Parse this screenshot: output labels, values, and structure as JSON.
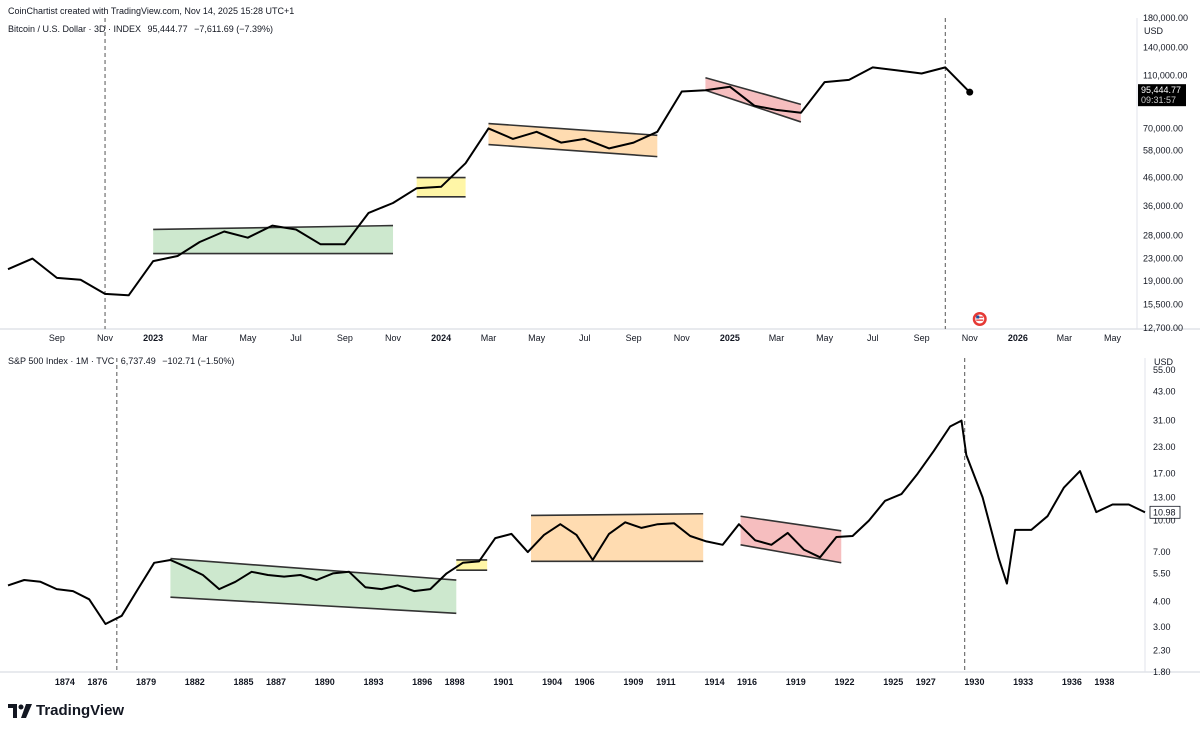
{
  "header": {
    "text": "CoinChartist created with TradingView.com, Nov 14, 2025 15:28 UTC+1"
  },
  "brand": {
    "name": "TradingView",
    "icon": "tradingview-logo-icon"
  },
  "colors": {
    "line": "#000000",
    "green": "#c8e6c9",
    "yellow": "#fff59d",
    "orange": "#ffd8a8",
    "red": "#f5b7b8",
    "axis_text": "#131722",
    "price_tag_bg": "#000000",
    "badge_red": "#e53935"
  },
  "chart_data": [
    {
      "type": "line",
      "legend": {
        "symbol": "Bitcoin / U.S. Dollar · 3D · INDEX",
        "price": "95,444.77",
        "change": "−7,611.69 (−7.39%)"
      },
      "currency": "USD",
      "scale": "log",
      "last_price": "95,444.77",
      "countdown": "09:31:57",
      "ylim": [
        12700,
        180000
      ],
      "y_ticks": [
        "180,000.00",
        "140,000.00",
        "110,000.00",
        "90,000.00",
        "70,000.00",
        "58,000.00",
        "46,000.00",
        "36,000.00",
        "28,000.00",
        "23,000.00",
        "19,000.00",
        "15,500.00",
        "12,700.00"
      ],
      "y_tick_values": [
        180000,
        140000,
        110000,
        90000,
        70000,
        58000,
        46000,
        36000,
        28000,
        23000,
        19000,
        15500,
        12700
      ],
      "x_ticks": [
        {
          "label": "Sep",
          "bold": false
        },
        {
          "label": "Nov",
          "bold": false
        },
        {
          "label": "2023",
          "bold": true
        },
        {
          "label": "Mar",
          "bold": false
        },
        {
          "label": "May",
          "bold": false
        },
        {
          "label": "Jul",
          "bold": false
        },
        {
          "label": "Sep",
          "bold": false
        },
        {
          "label": "Nov",
          "bold": false
        },
        {
          "label": "2024",
          "bold": true
        },
        {
          "label": "Mar",
          "bold": false
        },
        {
          "label": "May",
          "bold": false
        },
        {
          "label": "Jul",
          "bold": false
        },
        {
          "label": "Sep",
          "bold": false
        },
        {
          "label": "Nov",
          "bold": false
        },
        {
          "label": "2025",
          "bold": true
        },
        {
          "label": "Mar",
          "bold": false
        },
        {
          "label": "May",
          "bold": false
        },
        {
          "label": "Jul",
          "bold": false
        },
        {
          "label": "Sep",
          "bold": false
        },
        {
          "label": "Nov",
          "bold": false
        },
        {
          "label": "2026",
          "bold": true
        },
        {
          "label": "Mar",
          "bold": false
        },
        {
          "label": "May",
          "bold": false
        }
      ],
      "x_dates": [
        "2022-09",
        "2022-11",
        "2023-01",
        "2023-03",
        "2023-05",
        "2023-07",
        "2023-09",
        "2023-11",
        "2024-01",
        "2024-03",
        "2024-05",
        "2024-07",
        "2024-09",
        "2024-11",
        "2025-01",
        "2025-03",
        "2025-05",
        "2025-07",
        "2025-09",
        "2025-11",
        "2026-01",
        "2026-03",
        "2026-05"
      ],
      "x": [
        "2022-07",
        "2022-08",
        "2022-09",
        "2022-10",
        "2022-11",
        "2022-12",
        "2023-01",
        "2023-02",
        "2023-03",
        "2023-04",
        "2023-05",
        "2023-06",
        "2023-07",
        "2023-08",
        "2023-09",
        "2023-10",
        "2023-11",
        "2023-12",
        "2024-01",
        "2024-02",
        "2024-03",
        "2024-04",
        "2024-05",
        "2024-06",
        "2024-07",
        "2024-08",
        "2024-09",
        "2024-10",
        "2024-11",
        "2024-12",
        "2025-01",
        "2025-02",
        "2025-03",
        "2025-04",
        "2025-05",
        "2025-06",
        "2025-07",
        "2025-08",
        "2025-09",
        "2025-10",
        "2025-11"
      ],
      "values": [
        21000,
        23000,
        19500,
        19200,
        17000,
        16800,
        22500,
        23500,
        26500,
        29000,
        27500,
        30500,
        29500,
        26000,
        26000,
        34000,
        37000,
        42000,
        42500,
        52000,
        70000,
        64000,
        68000,
        62000,
        64000,
        59000,
        62000,
        68000,
        96000,
        97000,
        100000,
        85000,
        82000,
        80000,
        104000,
        106000,
        118000,
        115000,
        112000,
        118000,
        95444.77
      ],
      "channels": [
        {
          "color": "green",
          "from": "2023-01",
          "to": "2023-11",
          "top": [
            29500,
            30500
          ],
          "bottom": [
            24000,
            24000
          ]
        },
        {
          "color": "yellow",
          "from": "2023-12",
          "to": "2024-02",
          "top": [
            46000,
            46000
          ],
          "bottom": [
            39000,
            39000
          ]
        },
        {
          "color": "orange",
          "from": "2024-03",
          "to": "2024-10",
          "top": [
            73000,
            66000
          ],
          "bottom": [
            61000,
            55000
          ]
        },
        {
          "color": "red",
          "from": "2024-12",
          "to": "2025-04",
          "top": [
            108000,
            86000
          ],
          "bottom": [
            97000,
            74000
          ]
        }
      ],
      "markers": [
        "2022-11",
        "2025-10"
      ],
      "badge": {
        "icon": "us-flag-icon",
        "x": "2025-11"
      }
    },
    {
      "type": "line",
      "legend": {
        "symbol": "S&P 500 Index · 1M · TVC",
        "price": "6,737.49",
        "change": "−102.71 (−1.50%)"
      },
      "currency": "USD",
      "scale": "log",
      "last_price": "10.98",
      "ylim": [
        1.8,
        55
      ],
      "y_ticks": [
        "55.00",
        "43.00",
        "31.00",
        "23.00",
        "17.00",
        "13.00",
        "10.00",
        "7.00",
        "5.50",
        "4.00",
        "3.00",
        "2.30",
        "1.80"
      ],
      "y_tick_values": [
        55,
        43,
        31,
        23,
        17,
        13,
        10,
        7,
        5.5,
        4,
        3,
        2.3,
        1.8
      ],
      "x_ticks": [
        "1874",
        "1876",
        "1879",
        "1882",
        "1885",
        "1887",
        "1890",
        "1893",
        "1896",
        "1898",
        "1901",
        "1904",
        "1906",
        "1909",
        "1911",
        "1914",
        "1916",
        "1919",
        "1922",
        "1925",
        "1927",
        "1930",
        "1933",
        "1936",
        "1938"
      ],
      "x": [
        1871,
        1872,
        1873,
        1874,
        1875,
        1876,
        1877,
        1878,
        1879,
        1880,
        1881,
        1882,
        1883,
        1884,
        1885,
        1886,
        1887,
        1888,
        1889,
        1890,
        1891,
        1892,
        1893,
        1894,
        1895,
        1896,
        1897,
        1898,
        1899,
        1900,
        1901,
        1902,
        1903,
        1904,
        1905,
        1906,
        1907,
        1908,
        1909,
        1910,
        1911,
        1912,
        1913,
        1914,
        1915,
        1916,
        1917,
        1918,
        1919,
        1920,
        1921,
        1922,
        1923,
        1924,
        1925,
        1926,
        1927,
        1928,
        1929,
        1929.7,
        1930,
        1931,
        1932,
        1932.5,
        1933,
        1934,
        1935,
        1936,
        1937,
        1938,
        1939,
        1940,
        1941
      ],
      "values": [
        4.8,
        5.1,
        5.0,
        4.6,
        4.5,
        4.1,
        3.1,
        3.4,
        4.6,
        6.2,
        6.4,
        5.9,
        5.4,
        4.6,
        5.0,
        5.6,
        5.4,
        5.3,
        5.4,
        5.1,
        5.5,
        5.6,
        4.7,
        4.6,
        4.8,
        4.5,
        4.6,
        5.5,
        6.2,
        6.3,
        8.2,
        8.6,
        7.0,
        8.5,
        9.6,
        8.5,
        6.4,
        8.6,
        9.8,
        9.2,
        9.6,
        9.7,
        8.4,
        7.9,
        7.6,
        9.6,
        8.0,
        7.6,
        8.7,
        7.2,
        6.6,
        8.3,
        8.4,
        10.0,
        12.5,
        13.5,
        17.0,
        22.0,
        29.0,
        31.0,
        21.0,
        13.0,
        6.5,
        4.9,
        9.0,
        9.0,
        10.5,
        14.5,
        17.5,
        11.0,
        12.0,
        12.0,
        10.98
      ],
      "channels": [
        {
          "color": "green",
          "from": 1881,
          "to": 1898.6,
          "top": [
            6.5,
            5.1
          ],
          "bottom": [
            4.2,
            3.5
          ]
        },
        {
          "color": "yellow",
          "from": 1898.6,
          "to": 1900.5,
          "top": [
            6.4,
            6.4
          ],
          "bottom": [
            5.7,
            5.7
          ]
        },
        {
          "color": "orange",
          "from": 1903.2,
          "to": 1913.8,
          "top": [
            10.6,
            10.8
          ],
          "bottom": [
            6.3,
            6.3
          ]
        },
        {
          "color": "red",
          "from": 1916.1,
          "to": 1922.3,
          "top": [
            10.5,
            8.9
          ],
          "bottom": [
            7.6,
            6.2
          ]
        }
      ],
      "markers": [
        1877.7,
        1929.9
      ]
    }
  ]
}
